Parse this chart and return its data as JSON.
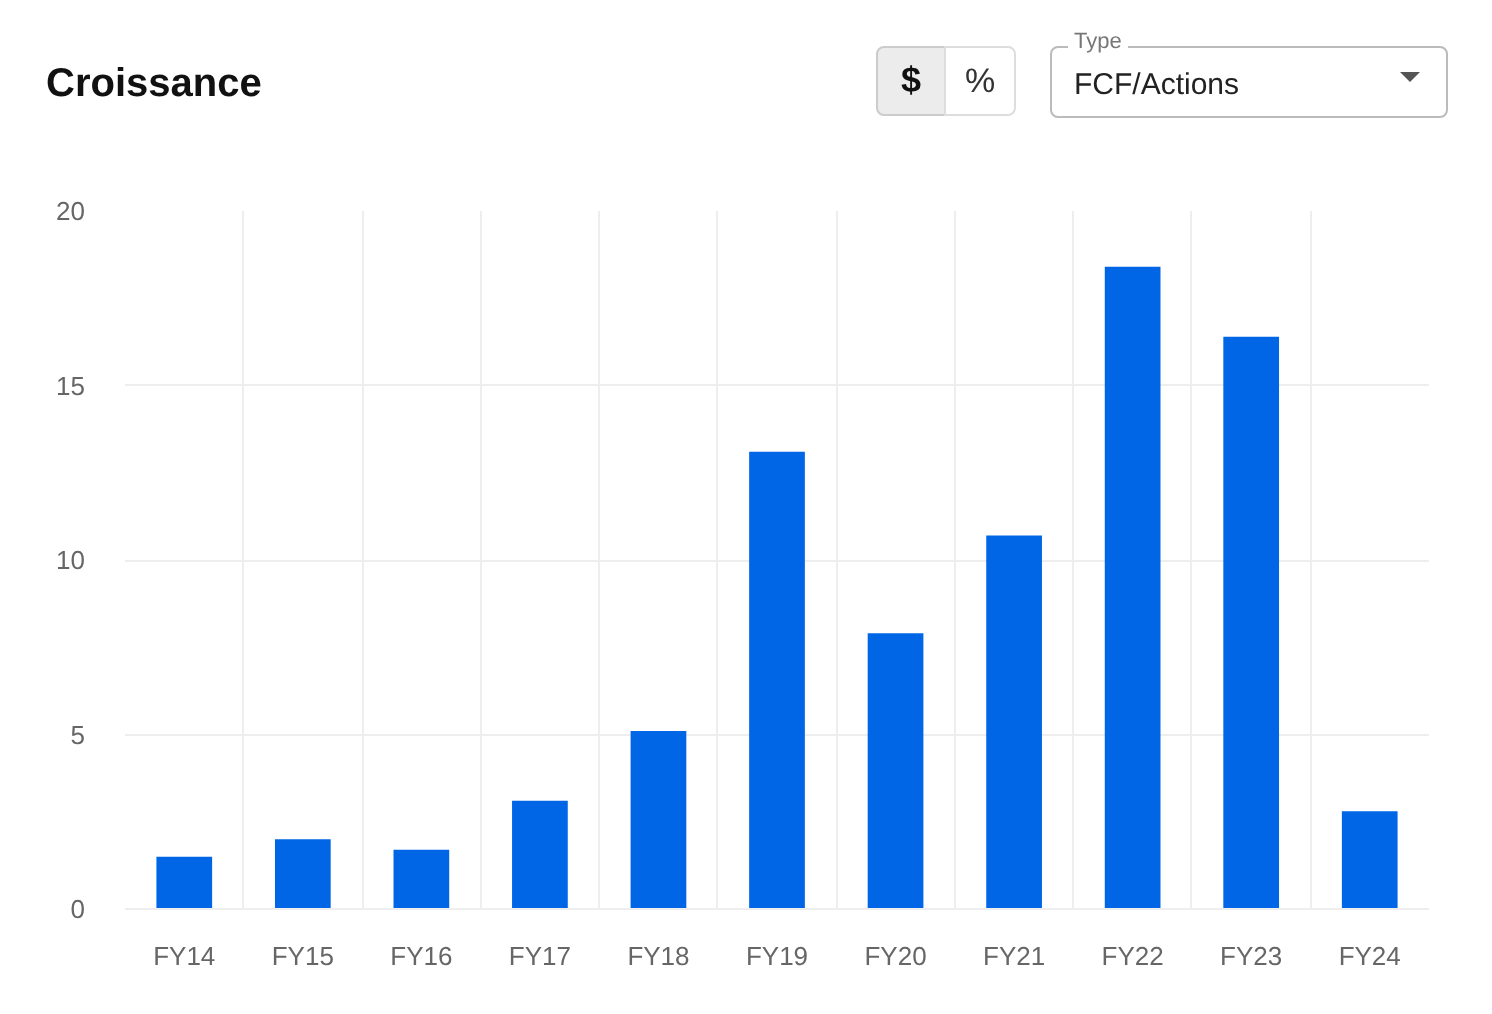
{
  "chart_data": {
    "type": "bar",
    "title": "Croissance",
    "annotations": [
      "$",
      "%",
      "Type",
      "FCF/Actions"
    ],
    "categories": [
      "FY14",
      "FY15",
      "FY16",
      "FY17",
      "FY18",
      "FY19",
      "FY20",
      "FY21",
      "FY22",
      "FY23",
      "FY24"
    ],
    "values": [
      1.5,
      2.0,
      1.7,
      3.1,
      5.1,
      13.1,
      7.9,
      10.7,
      18.4,
      16.4,
      2.8
    ],
    "color": "#0066e6",
    "ylim": [
      0,
      20
    ],
    "yticks": [
      0,
      5,
      10,
      15,
      20
    ],
    "grid": true
  }
}
